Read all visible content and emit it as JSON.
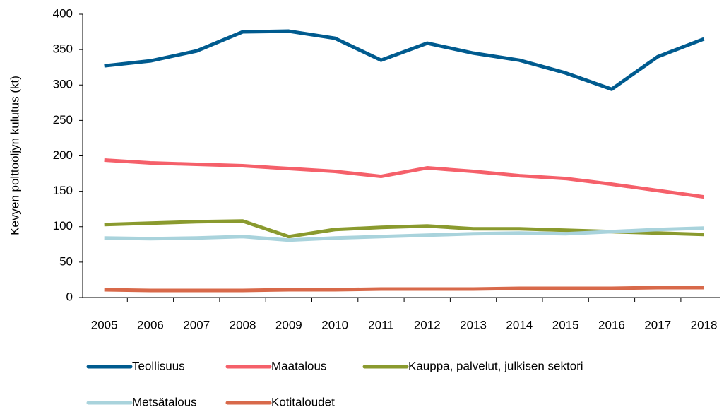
{
  "chart_data": {
    "type": "line",
    "y_label": "Kevyen polttoöljyn kulutus (kt)",
    "categories": [
      "2005",
      "2006",
      "2007",
      "2008",
      "2009",
      "2010",
      "2011",
      "2012",
      "2013",
      "2014",
      "2015",
      "2016",
      "2017",
      "2018"
    ],
    "series": [
      {
        "name": "Teollisuus",
        "color": "#005b8f",
        "values": [
          327,
          334,
          348,
          375,
          376,
          366,
          335,
          359,
          345,
          335,
          317,
          294,
          340,
          365
        ]
      },
      {
        "name": "Maatalous",
        "color": "#f5606a",
        "values": [
          194,
          190,
          188,
          186,
          182,
          178,
          171,
          183,
          178,
          172,
          168,
          160,
          151,
          142
        ]
      },
      {
        "name": "Kauppa, palvelut, julkisen sektori",
        "color": "#8a9a2e",
        "values": [
          103,
          105,
          107,
          108,
          86,
          96,
          99,
          101,
          97,
          97,
          95,
          93,
          91,
          89
        ]
      },
      {
        "name": "Metsätalous",
        "color": "#a9d3dc",
        "values": [
          84,
          83,
          84,
          86,
          81,
          84,
          86,
          88,
          90,
          91,
          90,
          93,
          96,
          98
        ]
      },
      {
        "name": "Kotitaloudet",
        "color": "#d8694a",
        "values": [
          11,
          10,
          10,
          10,
          11,
          11,
          12,
          12,
          12,
          13,
          13,
          13,
          14,
          14
        ]
      }
    ],
    "ylim": [
      0,
      400
    ],
    "yticks": [
      0,
      50,
      100,
      150,
      200,
      250,
      300,
      350,
      400
    ],
    "grid": false
  }
}
